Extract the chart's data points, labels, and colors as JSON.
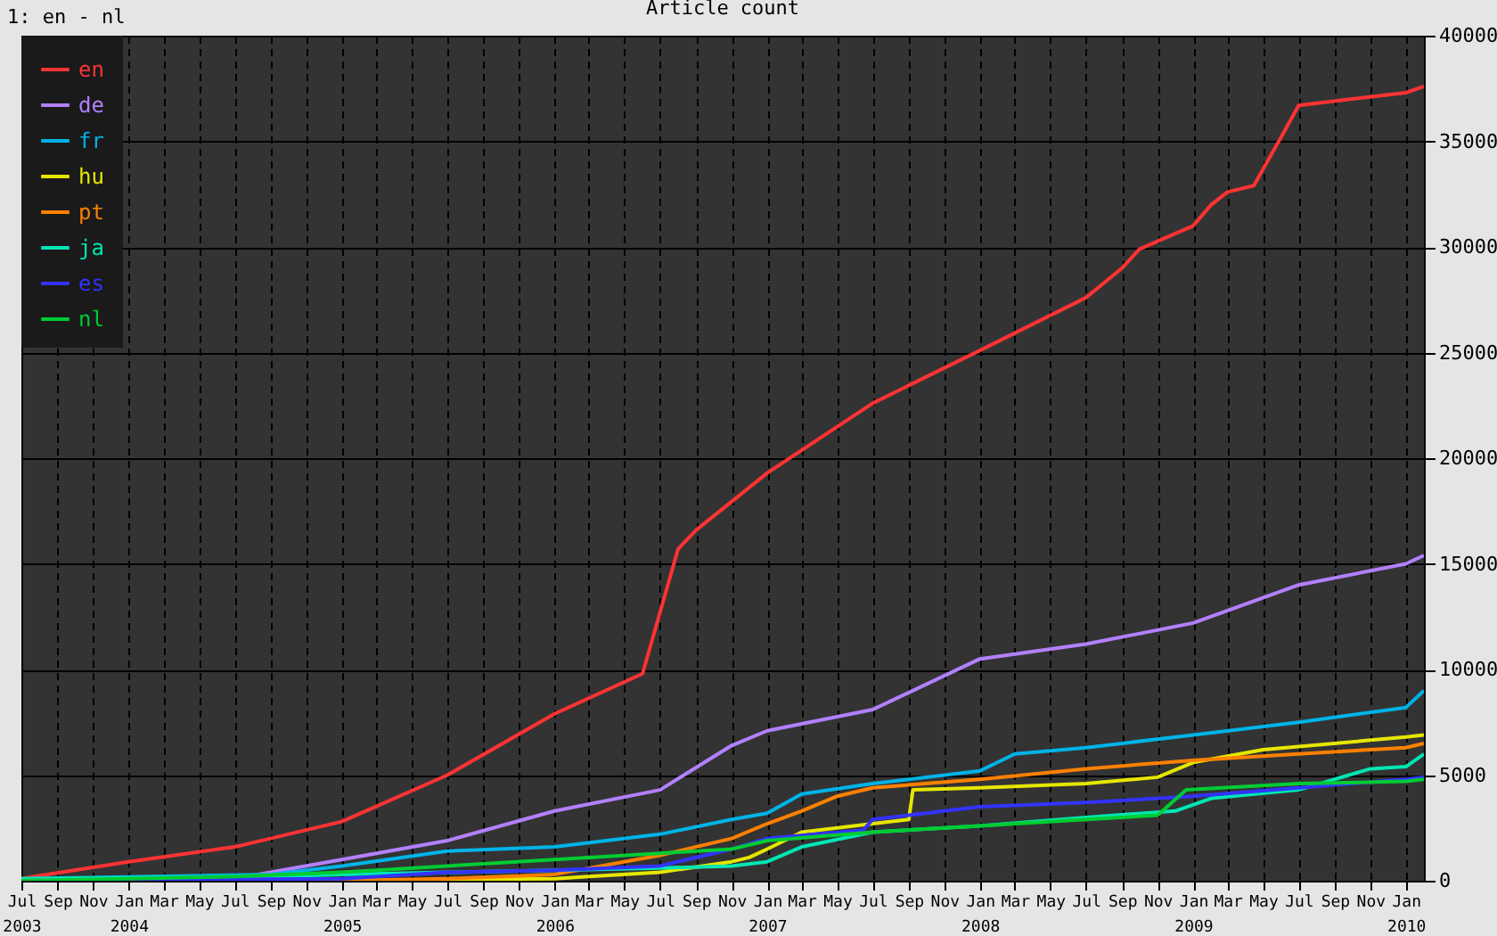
{
  "chart_data": {
    "type": "line",
    "title": "Article count",
    "annotations": [
      "1: en - nl"
    ],
    "xlim": [
      "2003-07-01",
      "2010-02-01"
    ],
    "xticks": [
      {
        "value": "2003-07-01",
        "label": "Jul 2003"
      },
      {
        "value": "2003-09-01",
        "label": "Sep"
      },
      {
        "value": "2003-11-01",
        "label": "Nov"
      },
      {
        "value": "2004-01-01",
        "label": "Jan 2004"
      },
      {
        "value": "2004-03-01",
        "label": "Mar"
      },
      {
        "value": "2004-05-01",
        "label": "May"
      },
      {
        "value": "2004-07-01",
        "label": "Jul"
      },
      {
        "value": "2004-09-01",
        "label": "Sep"
      },
      {
        "value": "2004-11-01",
        "label": "Nov"
      },
      {
        "value": "2005-01-01",
        "label": "Jan 2005"
      },
      {
        "value": "2005-03-01",
        "label": "Mar"
      },
      {
        "value": "2005-05-01",
        "label": "May"
      },
      {
        "value": "2005-07-01",
        "label": "Jul"
      },
      {
        "value": "2005-09-01",
        "label": "Sep"
      },
      {
        "value": "2005-11-01",
        "label": "Nov"
      },
      {
        "value": "2006-01-01",
        "label": "Jan 2006"
      },
      {
        "value": "2006-03-01",
        "label": "Mar"
      },
      {
        "value": "2006-05-01",
        "label": "May"
      },
      {
        "value": "2006-07-01",
        "label": "Jul"
      },
      {
        "value": "2006-09-01",
        "label": "Sep"
      },
      {
        "value": "2006-11-01",
        "label": "Nov"
      },
      {
        "value": "2007-01-01",
        "label": "Jan 2007"
      },
      {
        "value": "2007-03-01",
        "label": "Mar"
      },
      {
        "value": "2007-05-01",
        "label": "May"
      },
      {
        "value": "2007-07-01",
        "label": "Jul"
      },
      {
        "value": "2007-09-01",
        "label": "Sep"
      },
      {
        "value": "2007-11-01",
        "label": "Nov"
      },
      {
        "value": "2008-01-01",
        "label": "Jan 2008"
      },
      {
        "value": "2008-03-01",
        "label": "Mar"
      },
      {
        "value": "2008-05-01",
        "label": "May"
      },
      {
        "value": "2008-07-01",
        "label": "Jul"
      },
      {
        "value": "2008-09-01",
        "label": "Sep"
      },
      {
        "value": "2008-11-01",
        "label": "Nov"
      },
      {
        "value": "2009-01-01",
        "label": "Jan 2009"
      },
      {
        "value": "2009-03-01",
        "label": "Mar"
      },
      {
        "value": "2009-05-01",
        "label": "May"
      },
      {
        "value": "2009-07-01",
        "label": "Jul"
      },
      {
        "value": "2009-09-01",
        "label": "Sep"
      },
      {
        "value": "2009-11-01",
        "label": "Nov"
      },
      {
        "value": "2010-01-01",
        "label": "Jan 2010"
      }
    ],
    "ylim": [
      0,
      40000
    ],
    "yticks": [
      0,
      5000,
      10000,
      15000,
      20000,
      25000,
      30000,
      35000,
      40000
    ],
    "grid": true,
    "legend": "top left",
    "line_style": "solid",
    "series": [
      {
        "name": "en",
        "color": "#ff3333",
        "x": [
          "2003-07-01",
          "2004-01-01",
          "2004-07-01",
          "2005-01-01",
          "2005-07-01",
          "2006-01-01",
          "2006-06-01",
          "2006-08-01",
          "2006-09-01",
          "2007-01-01",
          "2007-07-01",
          "2008-01-01",
          "2008-07-01",
          "2008-09-01",
          "2008-10-01",
          "2009-01-01",
          "2009-02-01",
          "2009-03-01",
          "2009-04-15",
          "2009-06-01",
          "2009-07-01",
          "2010-01-01",
          "2010-02-01"
        ],
        "values": [
          100,
          900,
          1600,
          2800,
          5000,
          7900,
          9800,
          15700,
          16600,
          19300,
          22600,
          25100,
          27600,
          29000,
          29900,
          31000,
          32000,
          32600,
          32900,
          35200,
          36700,
          37300,
          37600
        ]
      },
      {
        "name": "de",
        "color": "#b380ff",
        "x": [
          "2003-07-01",
          "2004-07-01",
          "2004-09-01",
          "2005-01-01",
          "2005-07-01",
          "2006-01-01",
          "2006-07-01",
          "2006-11-01",
          "2007-01-01",
          "2007-07-01",
          "2008-01-01",
          "2008-07-01",
          "2009-01-01",
          "2009-07-01",
          "2010-01-01",
          "2010-02-01"
        ],
        "values": [
          0,
          100,
          400,
          1000,
          1900,
          3300,
          4300,
          6400,
          7100,
          8100,
          10500,
          11200,
          12200,
          14000,
          15000,
          15400
        ]
      },
      {
        "name": "fr",
        "color": "#00b3e6",
        "x": [
          "2003-07-01",
          "2004-09-01",
          "2005-01-01",
          "2005-07-01",
          "2006-01-01",
          "2006-07-01",
          "2006-11-01",
          "2007-01-01",
          "2007-03-01",
          "2007-07-01",
          "2008-01-01",
          "2008-03-01",
          "2008-07-01",
          "2009-01-01",
          "2009-07-01",
          "2010-01-01",
          "2010-02-01"
        ],
        "values": [
          100,
          300,
          700,
          1400,
          1600,
          2200,
          2900,
          3200,
          4100,
          4600,
          5200,
          6000,
          6300,
          6900,
          7500,
          8200,
          9000
        ]
      },
      {
        "name": "hu",
        "color": "#e6e600",
        "x": [
          "2003-07-01",
          "2005-01-01",
          "2006-01-01",
          "2006-03-01",
          "2006-07-01",
          "2006-11-01",
          "2006-12-01",
          "2007-01-01",
          "2007-03-01",
          "2007-07-01",
          "2007-09-01",
          "2007-09-08",
          "2008-01-01",
          "2008-07-01",
          "2008-11-01",
          "2009-01-01",
          "2009-05-01",
          "2010-01-01",
          "2010-02-01"
        ],
        "values": [
          0,
          0,
          100,
          200,
          400,
          900,
          1100,
          1500,
          2300,
          2700,
          2900,
          4300,
          4400,
          4600,
          4900,
          5600,
          6200,
          6800,
          6900
        ]
      },
      {
        "name": "pt",
        "color": "#ff8000",
        "x": [
          "2003-07-01",
          "2005-01-01",
          "2005-07-01",
          "2006-01-01",
          "2006-07-01",
          "2006-11-01",
          "2007-01-01",
          "2007-03-01",
          "2007-05-01",
          "2007-07-01",
          "2008-01-01",
          "2008-07-01",
          "2009-01-01",
          "2009-07-01",
          "2010-01-01",
          "2010-02-01"
        ],
        "values": [
          0,
          0,
          100,
          300,
          1200,
          2000,
          2700,
          3300,
          4000,
          4400,
          4800,
          5300,
          5700,
          6000,
          6300,
          6500
        ]
      },
      {
        "name": "ja",
        "color": "#00e6b3",
        "x": [
          "2003-07-01",
          "2004-09-01",
          "2005-01-01",
          "2005-07-01",
          "2006-01-01",
          "2006-07-01",
          "2006-11-01",
          "2007-01-01",
          "2007-03-01",
          "2007-07-01",
          "2008-01-01",
          "2008-07-01",
          "2008-12-01",
          "2009-02-01",
          "2009-07-01",
          "2009-11-01",
          "2010-01-01",
          "2010-02-01"
        ],
        "values": [
          100,
          200,
          300,
          400,
          500,
          600,
          700,
          900,
          1600,
          2300,
          2600,
          3000,
          3300,
          3900,
          4300,
          5300,
          5400,
          6000
        ]
      },
      {
        "name": "es",
        "color": "#3333ff",
        "x": [
          "2003-07-01",
          "2005-01-01",
          "2005-07-01",
          "2006-01-01",
          "2006-07-01",
          "2006-11-01",
          "2007-01-01",
          "2007-06-15",
          "2007-07-01",
          "2007-09-01",
          "2008-01-01",
          "2008-07-01",
          "2009-01-01",
          "2009-07-01",
          "2010-01-01",
          "2010-02-01"
        ],
        "values": [
          0,
          100,
          400,
          500,
          700,
          1500,
          2000,
          2400,
          2900,
          3100,
          3500,
          3700,
          4000,
          4400,
          4800,
          4900
        ]
      },
      {
        "name": "nl",
        "color": "#00cc33",
        "x": [
          "2003-07-01",
          "2004-01-01",
          "2004-07-01",
          "2005-01-01",
          "2005-07-01",
          "2006-01-01",
          "2006-07-01",
          "2006-11-01",
          "2007-01-01",
          "2007-07-01",
          "2008-01-01",
          "2008-07-01",
          "2008-11-01",
          "2008-12-20",
          "2009-07-01",
          "2010-01-01",
          "2010-02-01"
        ],
        "values": [
          0,
          100,
          200,
          400,
          700,
          1000,
          1300,
          1500,
          1900,
          2300,
          2600,
          2900,
          3100,
          4300,
          4600,
          4700,
          4800
        ]
      }
    ]
  }
}
